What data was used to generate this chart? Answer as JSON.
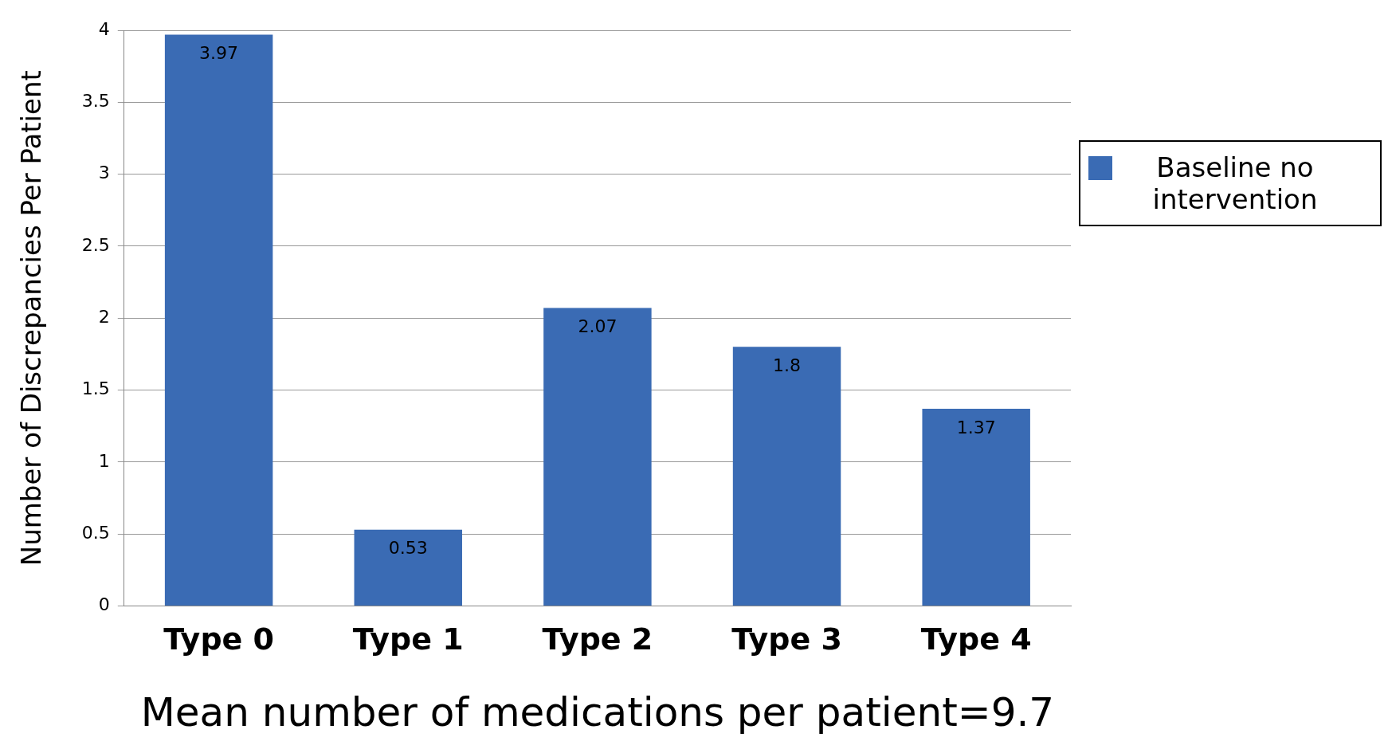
{
  "chart_data": {
    "type": "bar",
    "xlabel": "Mean number of medications per patient=9.7",
    "ylabel": "Number of Discrepancies Per Patient",
    "categories": [
      "Type 0",
      "Type 1",
      "Type 2",
      "Type 3",
      "Type 4"
    ],
    "series": [
      {
        "name": "Baseline no intervention",
        "color": "#3a6bb4",
        "values": [
          3.97,
          0.53,
          2.07,
          1.8,
          1.37
        ]
      }
    ],
    "ylim": [
      0,
      4
    ],
    "yticks": [
      0,
      0.5,
      1,
      1.5,
      2,
      2.5,
      3,
      3.5,
      4
    ],
    "grid": "y",
    "legend": "right",
    "data_labels": true
  }
}
